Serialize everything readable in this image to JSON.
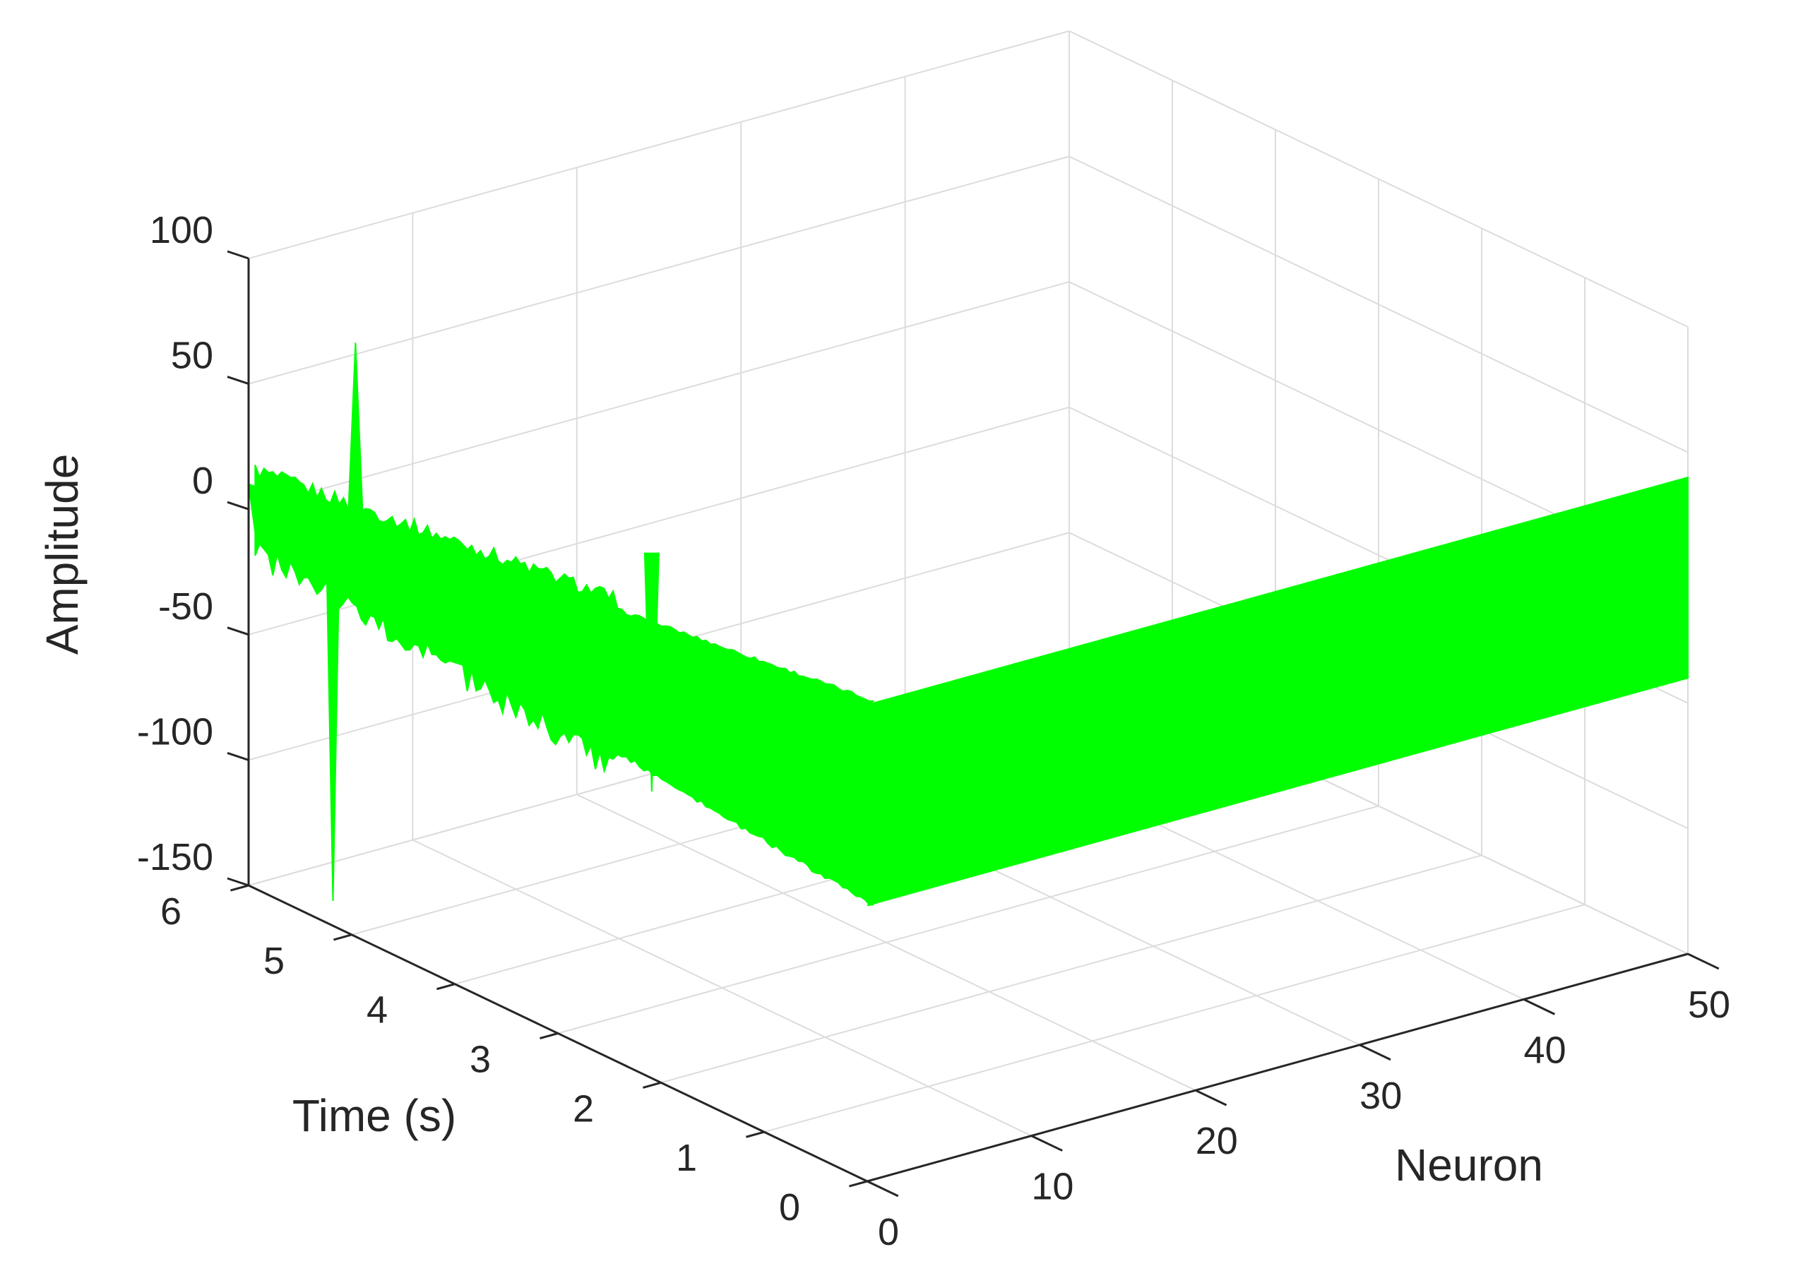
{
  "chart_data": {
    "type": "surface",
    "title": "",
    "xlabel": "Neuron",
    "ylabel": "Time (s)",
    "zlabel": "Amplitude",
    "xlim": [
      0,
      50
    ],
    "ylim": [
      0,
      6
    ],
    "zlim": [
      -150,
      100
    ],
    "x_ticks": [
      0,
      10,
      20,
      30,
      40,
      50
    ],
    "y_ticks": [
      0,
      1,
      2,
      3,
      4,
      5,
      6
    ],
    "z_ticks": [
      -150,
      -100,
      -50,
      0,
      50,
      100
    ],
    "grid": true,
    "surface_color": "#00ff00",
    "surface": {
      "neuron_range": [
        0,
        50
      ],
      "time_range": [
        0,
        6
      ],
      "amplitude_at_time_0": [
        -40,
        40
      ],
      "amplitude_at_time_6": [
        -10,
        10
      ],
      "early_transients": [
        {
          "neuron": 2,
          "time": 5.5,
          "amplitude": -150
        },
        {
          "neuron": 4,
          "time": 5.6,
          "amplitude": 67
        },
        {
          "neuron": 12,
          "time": 4.0,
          "amplitude": -95
        }
      ]
    }
  }
}
